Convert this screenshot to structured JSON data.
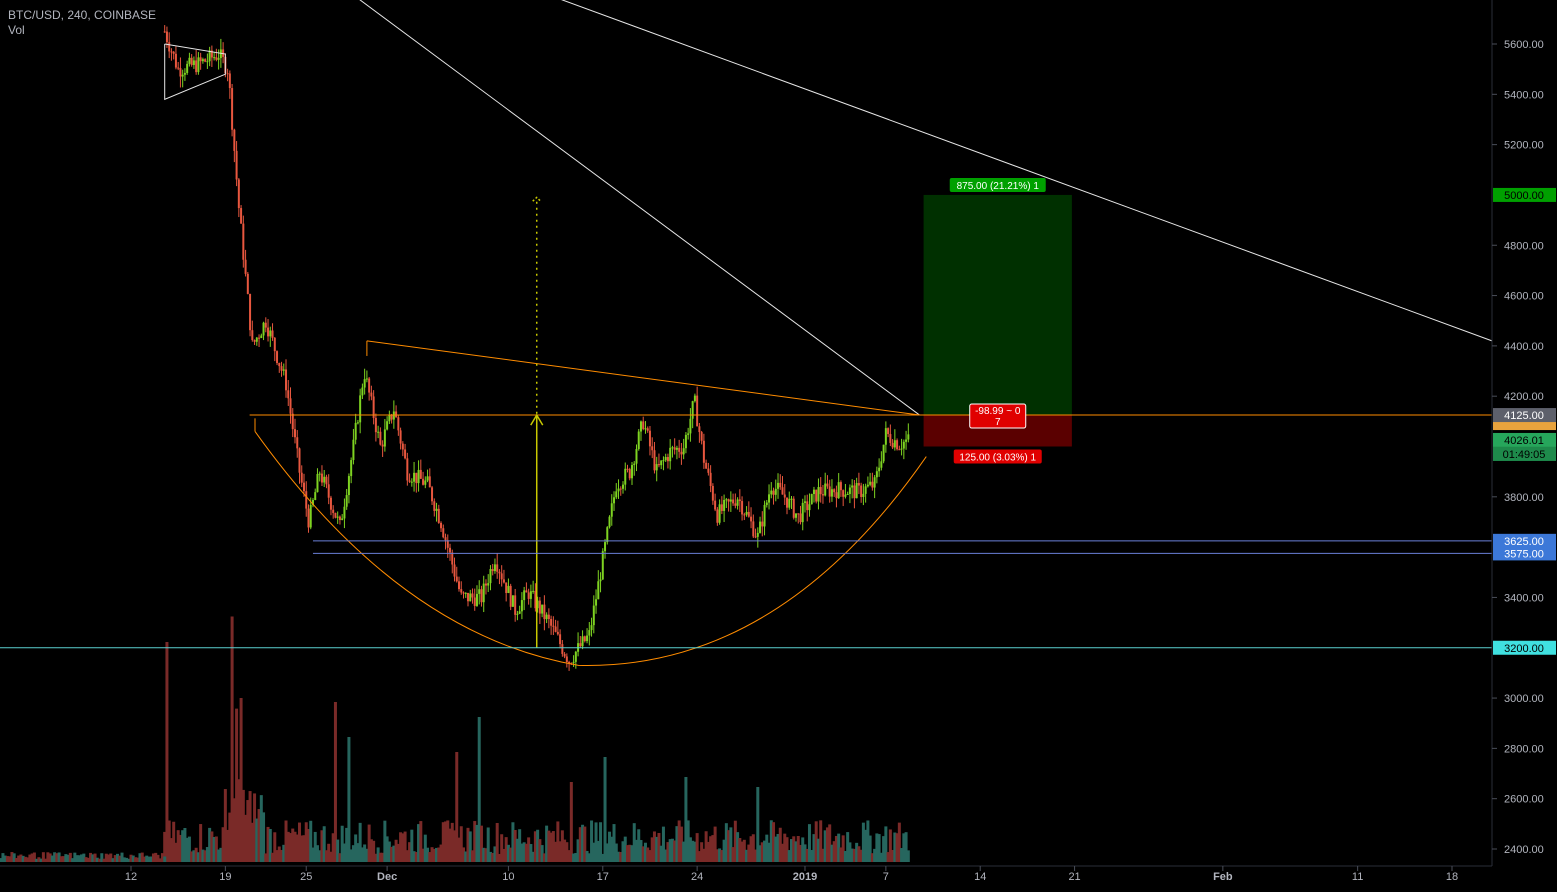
{
  "header": {
    "symbol_line": "BTC/USD, 240, COINBASE",
    "volume_label": "Vol"
  },
  "chart_data": {
    "type": "candlestick",
    "symbol": "BTC/USD",
    "interval": "240",
    "exchange": "COINBASE",
    "ylim": [
      2330,
      5790
    ],
    "y_ticks": [
      {
        "value": 5600,
        "label": "5600.00"
      },
      {
        "value": 5400,
        "label": "5400.00"
      },
      {
        "value": 5200,
        "label": "5200.00"
      },
      {
        "value": 4800,
        "label": "4800.00"
      },
      {
        "value": 4600,
        "label": "4600.00"
      },
      {
        "value": 4400,
        "label": "4400.00"
      },
      {
        "value": 4200,
        "label": "4200.00"
      },
      {
        "value": 3800,
        "label": "3800.00"
      },
      {
        "value": 3400,
        "label": "3400.00"
      },
      {
        "value": 3000,
        "label": "3000.00"
      },
      {
        "value": 2800,
        "label": "2800.00"
      },
      {
        "value": 2600,
        "label": "2600.00"
      },
      {
        "value": 2400,
        "label": "2400.00"
      }
    ],
    "x_ticks": [
      {
        "label": "12",
        "day": 12
      },
      {
        "label": "19",
        "day": 19
      },
      {
        "label": "25",
        "day": 25
      },
      {
        "label": "Dec",
        "day": 31
      },
      {
        "label": "10",
        "day": 40
      },
      {
        "label": "17",
        "day": 47
      },
      {
        "label": "24",
        "day": 54
      },
      {
        "label": "2019",
        "day": 62
      },
      {
        "label": "7",
        "day": 68
      },
      {
        "label": "14",
        "day": 75
      },
      {
        "label": "21",
        "day": 82
      },
      {
        "label": "Feb",
        "day": 93
      },
      {
        "label": "11",
        "day": 103
      },
      {
        "label": "18",
        "day": 110
      }
    ],
    "price_anchors": [
      {
        "day": 14.5,
        "price": 5650
      },
      {
        "day": 15.5,
        "price": 5500
      },
      {
        "day": 17,
        "price": 5520
      },
      {
        "day": 18.5,
        "price": 5560
      },
      {
        "day": 19.2,
        "price": 5500
      },
      {
        "day": 20,
        "price": 4950
      },
      {
        "day": 21,
        "price": 4400
      },
      {
        "day": 22,
        "price": 4500
      },
      {
        "day": 23.5,
        "price": 4250
      },
      {
        "day": 24.5,
        "price": 3900
      },
      {
        "day": 25.2,
        "price": 3700
      },
      {
        "day": 26,
        "price": 3900
      },
      {
        "day": 27.5,
        "price": 3680
      },
      {
        "day": 28.5,
        "price": 4000
      },
      {
        "day": 29.3,
        "price": 4300
      },
      {
        "day": 30.5,
        "price": 4000
      },
      {
        "day": 31.5,
        "price": 4150
      },
      {
        "day": 32.5,
        "price": 3900
      },
      {
        "day": 34,
        "price": 3850
      },
      {
        "day": 35,
        "price": 3700
      },
      {
        "day": 36.5,
        "price": 3400
      },
      {
        "day": 38,
        "price": 3400
      },
      {
        "day": 39,
        "price": 3560
      },
      {
        "day": 40.5,
        "price": 3350
      },
      {
        "day": 41.5,
        "price": 3420
      },
      {
        "day": 43,
        "price": 3300
      },
      {
        "day": 44.5,
        "price": 3150
      },
      {
        "day": 46,
        "price": 3250
      },
      {
        "day": 47,
        "price": 3550
      },
      {
        "day": 48,
        "price": 3850
      },
      {
        "day": 49,
        "price": 3900
      },
      {
        "day": 50,
        "price": 4100
      },
      {
        "day": 51,
        "price": 3900
      },
      {
        "day": 52,
        "price": 3980
      },
      {
        "day": 53,
        "price": 4000
      },
      {
        "day": 53.8,
        "price": 4180
      },
      {
        "day": 54.5,
        "price": 3950
      },
      {
        "day": 55.5,
        "price": 3730
      },
      {
        "day": 57,
        "price": 3800
      },
      {
        "day": 58.5,
        "price": 3640
      },
      {
        "day": 59.5,
        "price": 3850
      },
      {
        "day": 60.5,
        "price": 3800
      },
      {
        "day": 61.5,
        "price": 3720
      },
      {
        "day": 63,
        "price": 3820
      },
      {
        "day": 64.5,
        "price": 3830
      },
      {
        "day": 66,
        "price": 3820
      },
      {
        "day": 67.2,
        "price": 3850
      },
      {
        "day": 68,
        "price": 4050
      },
      {
        "day": 69,
        "price": 4010
      },
      {
        "day": 69.7,
        "price": 4026
      }
    ],
    "volume_bars": "volume bars along bottom pane, spikes near 14, 19-20, 27, 28, 36, 38, 47, 53",
    "horizontal_levels": [
      {
        "value": 5000,
        "label": "5000.00",
        "color": "#00a000",
        "text_color": "#000000"
      },
      {
        "value": 4125,
        "label": "4125.00",
        "color": "#5d606b",
        "text_color": "#ffffff"
      },
      {
        "value": 4026.01,
        "label": "4026.01",
        "color": "#26a65b",
        "text_color": "#000000"
      },
      {
        "value": 3625,
        "label": "3625.00",
        "color": "#3c78d8",
        "text_color": "#ffffff"
      },
      {
        "value": 3575,
        "label": "3575.00",
        "color": "#3c78d8",
        "text_color": "#ffffff"
      },
      {
        "value": 3200,
        "label": "3200.00",
        "color": "#40e0e0",
        "text_color": "#000000"
      }
    ],
    "countdown_label": "01:49:05",
    "position": {
      "entry": 4125,
      "target": 5000,
      "stop": 4000,
      "target_label": "875.00 (21.21%) 1",
      "stop_label": "125.00 (3.03%) 1",
      "center_label_line1": "-98.99 ~ 0",
      "center_label_line2": "7"
    },
    "colors": {
      "up": "#7ed321",
      "down": "#e8573f",
      "vol_up": "#26665e",
      "vol_down": "#7a2a28",
      "pattern": "#ff8c00",
      "trend": "#e6e6e6",
      "measure": "#c8c800",
      "axis_text": "#b2b5be",
      "profit_zone": "#003000",
      "loss_zone": "#5a0000"
    }
  }
}
